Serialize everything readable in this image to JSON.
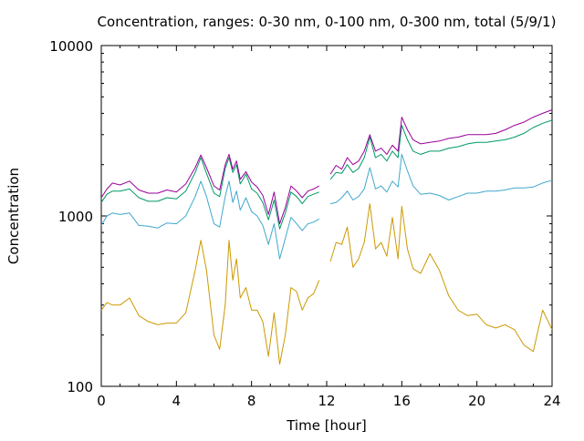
{
  "chart_data": {
    "type": "line",
    "title": "Concentration, ranges: 0-30 nm, 0-100 nm, 0-300 nm, total (5/9/1)",
    "xlabel": "Time [hour]",
    "ylabel": "Concentration",
    "xlim": [
      0,
      24
    ],
    "ylim": [
      100,
      10000
    ],
    "yscale": "log",
    "grid": false,
    "legend": "none",
    "x_ticks": [
      "0",
      "4",
      "8",
      "12",
      "16",
      "20",
      "24"
    ],
    "y_ticks": [
      "100",
      "1000",
      "10000"
    ],
    "x_tick_values": [
      0,
      4,
      8,
      12,
      16,
      20,
      24
    ],
    "y_tick_values": [
      100,
      1000,
      10000
    ],
    "x": [
      0,
      0.3,
      0.6,
      1.0,
      1.5,
      2.0,
      2.5,
      3.0,
      3.5,
      4.0,
      4.5,
      5.0,
      5.3,
      5.6,
      6.0,
      6.3,
      6.6,
      6.8,
      7.0,
      7.2,
      7.4,
      7.7,
      8.0,
      8.3,
      8.6,
      8.9,
      9.2,
      9.5,
      9.8,
      10.1,
      10.4,
      10.7,
      11.0,
      11.3,
      11.6,
      11.7,
      11.75,
      12.2,
      12.5,
      12.8,
      13.1,
      13.4,
      13.7,
      14.0,
      14.3,
      14.6,
      14.9,
      15.2,
      15.5,
      15.8,
      16.0,
      16.3,
      16.6,
      17.0,
      17.5,
      18.0,
      18.5,
      19.0,
      19.5,
      20.0,
      20.5,
      21.0,
      21.5,
      22.0,
      22.5,
      23.0,
      23.5,
      24.0
    ],
    "series": [
      {
        "color": "#cc9900",
        "values": [
          280,
          310,
          300,
          300,
          330,
          260,
          240,
          230,
          235,
          235,
          270,
          480,
          720,
          480,
          200,
          165,
          300,
          720,
          420,
          560,
          330,
          380,
          280,
          280,
          240,
          150,
          270,
          135,
          200,
          380,
          360,
          280,
          330,
          350,
          420,
          null,
          null,
          540,
          700,
          680,
          860,
          500,
          560,
          700,
          1180,
          640,
          700,
          580,
          980,
          560,
          1140,
          640,
          490,
          460,
          600,
          480,
          340,
          280,
          260,
          265,
          230,
          220,
          230,
          215,
          175,
          160,
          280,
          215
        ]
      },
      {
        "color": "#3fa8cc",
        "values": [
          880,
          1000,
          1040,
          1020,
          1040,
          880,
          870,
          850,
          910,
          900,
          1000,
          1300,
          1600,
          1300,
          900,
          860,
          1300,
          1600,
          1200,
          1400,
          1080,
          1280,
          1060,
          1000,
          880,
          680,
          900,
          560,
          740,
          980,
          900,
          820,
          900,
          920,
          960,
          null,
          null,
          1180,
          1200,
          1280,
          1400,
          1240,
          1300,
          1440,
          1920,
          1440,
          1500,
          1380,
          1600,
          1480,
          2300,
          1840,
          1500,
          1340,
          1360,
          1320,
          1240,
          1300,
          1360,
          1360,
          1400,
          1400,
          1420,
          1460,
          1460,
          1480,
          1560,
          1620
        ]
      },
      {
        "color": "#009966",
        "values": [
          1200,
          1340,
          1400,
          1400,
          1440,
          1280,
          1220,
          1220,
          1280,
          1260,
          1400,
          1800,
          2200,
          1780,
          1360,
          1300,
          1900,
          2200,
          1800,
          2000,
          1540,
          1760,
          1440,
          1360,
          1200,
          950,
          1240,
          840,
          1040,
          1380,
          1300,
          1180,
          1300,
          1340,
          1380,
          null,
          null,
          1640,
          1800,
          1780,
          2000,
          1800,
          1900,
          2200,
          2900,
          2200,
          2300,
          2100,
          2400,
          2200,
          3400,
          2800,
          2400,
          2300,
          2400,
          2400,
          2500,
          2550,
          2650,
          2700,
          2700,
          2750,
          2800,
          2900,
          3050,
          3300,
          3500,
          3650
        ]
      },
      {
        "color": "#990099",
        "values": [
          1280,
          1440,
          1560,
          1520,
          1600,
          1420,
          1360,
          1360,
          1420,
          1380,
          1540,
          1920,
          2280,
          1920,
          1500,
          1420,
          2000,
          2300,
          1880,
          2100,
          1640,
          1820,
          1580,
          1480,
          1320,
          1020,
          1380,
          900,
          1120,
          1500,
          1400,
          1280,
          1400,
          1440,
          1500,
          null,
          null,
          1760,
          1980,
          1880,
          2200,
          2000,
          2100,
          2400,
          3000,
          2400,
          2500,
          2300,
          2600,
          2400,
          3800,
          3200,
          2800,
          2650,
          2700,
          2750,
          2850,
          2900,
          3000,
          3000,
          3000,
          3050,
          3200,
          3400,
          3550,
          3800,
          4000,
          4200
        ]
      }
    ]
  }
}
